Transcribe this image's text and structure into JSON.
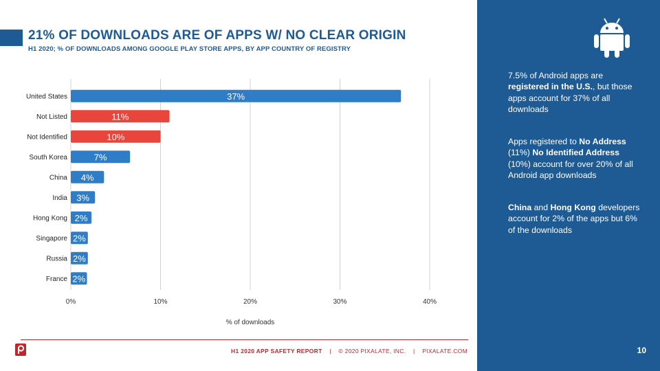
{
  "slide": {
    "title": "21% OF DOWNLOADS ARE OF APPS W/ NO CLEAR ORIGIN",
    "subtitle": "H1 2020; % OF DOWNLOADS AMONG GOOGLE PLAY STORE APPS, BY APP COUNTRY OF REGISTRY",
    "page_number": "10"
  },
  "chart_data": {
    "type": "bar",
    "orientation": "horizontal",
    "categories": [
      "United States",
      "Not Listed",
      "Not Identified",
      "South Korea",
      "China",
      "India",
      "Hong Kong",
      "Singapore",
      "Russia",
      "France"
    ],
    "values": [
      37,
      11,
      10,
      7,
      4,
      3,
      2,
      2,
      2,
      2
    ],
    "data_labels": [
      "37%",
      "11%",
      "10%",
      "7%",
      "4%",
      "3%",
      "2%",
      "2%",
      "2%",
      "2%"
    ],
    "bar_lengths": [
      36.8,
      11.0,
      10.0,
      6.6,
      3.7,
      2.7,
      2.3,
      1.9,
      1.9,
      1.8
    ],
    "bar_colors": [
      "#2f7dc6",
      "#e8453c",
      "#e8453c",
      "#2f7dc6",
      "#2f7dc6",
      "#2f7dc6",
      "#2f7dc6",
      "#2f7dc6",
      "#2f7dc6",
      "#2f7dc6"
    ],
    "xlabel": "% of downloads",
    "ylabel": "",
    "xlim": [
      0,
      40
    ],
    "xticks": [
      0,
      10,
      20,
      30,
      40
    ],
    "xtick_labels": [
      "0%",
      "10%",
      "20%",
      "30%",
      "40%"
    ],
    "grid": true,
    "legend": "none"
  },
  "sidebar": {
    "icon": "android-icon",
    "paragraphs": [
      [
        {
          "text": "7.5% of Android apps are ",
          "bold": false
        },
        {
          "text": "registered in the U.S.",
          "bold": true
        },
        {
          "text": ", but those apps account for 37% of all downloads",
          "bold": false
        }
      ],
      [
        {
          "text": "Apps registered to ",
          "bold": false
        },
        {
          "text": "No Address",
          "bold": true
        },
        {
          "text": " (11%) ",
          "bold": false
        },
        {
          "text": "No Identified Address",
          "bold": true
        },
        {
          "text": " (10%) account for over 20% of all Android app downloads",
          "bold": false
        }
      ],
      [
        {
          "text": "China",
          "bold": true
        },
        {
          "text": " and ",
          "bold": false
        },
        {
          "text": "Hong Kong",
          "bold": true
        },
        {
          "text": " developers account for 2% of the apps but 6% of the downloads",
          "bold": false
        }
      ]
    ]
  },
  "footer": {
    "report": "H1 2020 APP SAFETY REPORT",
    "divider": "|",
    "copyright": "© 2020 PIXALATE, INC.",
    "website": "PIXALATE.COM",
    "logo": "pixalate-logo-icon"
  },
  "colors": {
    "brand_blue": "#1e5a93",
    "bar_blue": "#2f7dc6",
    "bar_red": "#e8453c",
    "footer_red": "#c0272d"
  }
}
